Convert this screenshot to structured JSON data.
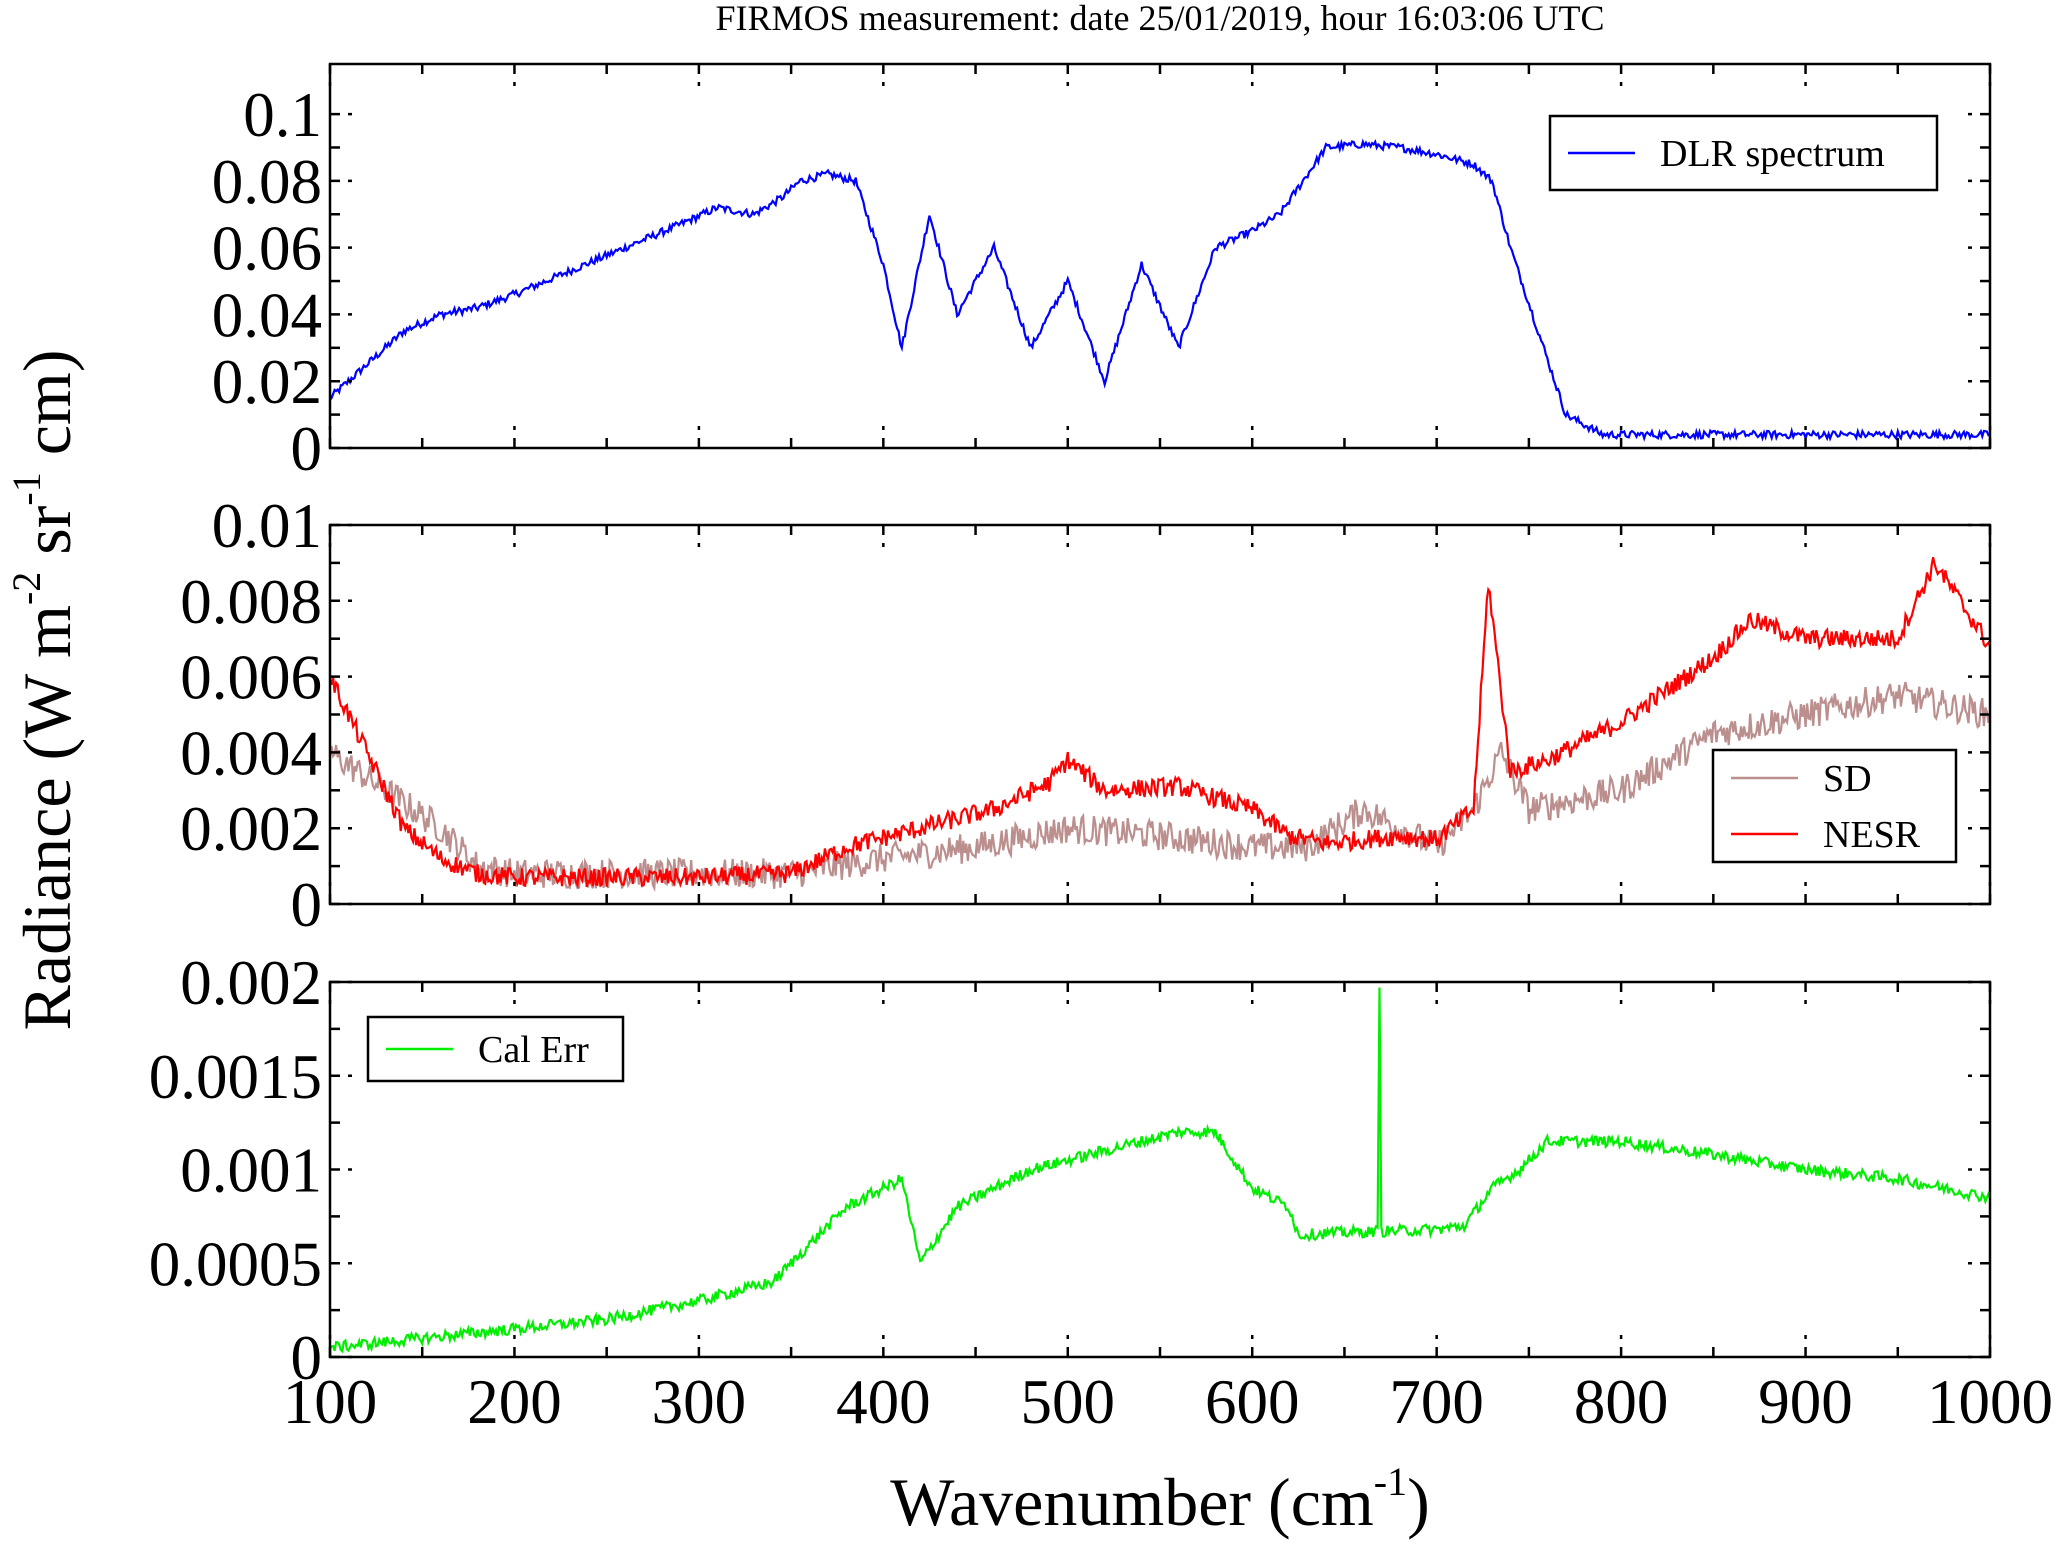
{
  "chart_data": [
    {
      "type": "line",
      "title": "FIRMOS measurement: date 25/01/2019, hour 16:03:06 UTC",
      "xlim": [
        100,
        1000
      ],
      "ylim": [
        0,
        0.115
      ],
      "x_ticks": [
        "100",
        "200",
        "300",
        "400",
        "500",
        "600",
        "700",
        "800",
        "900",
        "1000"
      ],
      "y_ticks": [
        "0",
        "0.02",
        "0.04",
        "0.06",
        "0.08",
        "0.1"
      ],
      "y_tick_values": [
        0,
        0.02,
        0.04,
        0.06,
        0.08,
        0.1
      ],
      "legend_position": "top-right",
      "grid": false,
      "series": [
        {
          "name": "DLR spectrum",
          "color": "#0000ff",
          "x": [
            100,
            120,
            140,
            160,
            180,
            200,
            230,
            260,
            290,
            310,
            330,
            345,
            355,
            370,
            385,
            400,
            410,
            425,
            440,
            460,
            480,
            500,
            520,
            540,
            560,
            580,
            600,
            615,
            625,
            640,
            660,
            680,
            700,
            720,
            730,
            740,
            755,
            770,
            790,
            820,
            860,
            900,
            950,
            1000
          ],
          "y": [
            0.015,
            0.025,
            0.035,
            0.04,
            0.042,
            0.046,
            0.053,
            0.06,
            0.067,
            0.072,
            0.07,
            0.075,
            0.08,
            0.082,
            0.08,
            0.055,
            0.03,
            0.07,
            0.04,
            0.06,
            0.03,
            0.05,
            0.02,
            0.055,
            0.03,
            0.06,
            0.065,
            0.07,
            0.078,
            0.09,
            0.091,
            0.09,
            0.088,
            0.085,
            0.08,
            0.06,
            0.035,
            0.01,
            0.004,
            0.004,
            0.004,
            0.004,
            0.004,
            0.004
          ]
        }
      ]
    },
    {
      "type": "line",
      "xlim": [
        100,
        1000
      ],
      "ylim": [
        0,
        0.01
      ],
      "x_ticks": [
        "100",
        "200",
        "300",
        "400",
        "500",
        "600",
        "700",
        "800",
        "900",
        "1000"
      ],
      "y_ticks": [
        "0",
        "0.002",
        "0.004",
        "0.006",
        "0.008",
        "0.01"
      ],
      "y_tick_values": [
        0,
        0.002,
        0.004,
        0.006,
        0.008,
        0.01
      ],
      "legend_position": "right",
      "grid": false,
      "series": [
        {
          "name": "SD",
          "color": "#bc8f8f",
          "x": [
            100,
            130,
            160,
            180,
            200,
            250,
            300,
            350,
            400,
            450,
            500,
            550,
            600,
            630,
            660,
            700,
            720,
            735,
            750,
            800,
            850,
            900,
            950,
            1000
          ],
          "y": [
            0.004,
            0.003,
            0.002,
            0.001,
            0.0008,
            0.0008,
            0.0008,
            0.0008,
            0.0012,
            0.0015,
            0.002,
            0.0018,
            0.0015,
            0.0015,
            0.0025,
            0.0015,
            0.0025,
            0.004,
            0.0025,
            0.003,
            0.0045,
            0.005,
            0.0055,
            0.005
          ]
        },
        {
          "name": "NESR",
          "color": "#ff0000",
          "x": [
            100,
            120,
            140,
            160,
            180,
            200,
            250,
            300,
            350,
            380,
            420,
            460,
            490,
            500,
            520,
            560,
            600,
            620,
            640,
            680,
            700,
            720,
            728,
            740,
            760,
            800,
            850,
            870,
            900,
            950,
            970,
            1000
          ],
          "y": [
            0.006,
            0.004,
            0.002,
            0.0012,
            0.0008,
            0.0007,
            0.0007,
            0.0007,
            0.0008,
            0.0015,
            0.002,
            0.0025,
            0.0032,
            0.0038,
            0.003,
            0.0031,
            0.0025,
            0.0018,
            0.0016,
            0.0018,
            0.0017,
            0.0025,
            0.0085,
            0.0035,
            0.0038,
            0.0048,
            0.0065,
            0.0075,
            0.007,
            0.007,
            0.009,
            0.0068
          ]
        }
      ]
    },
    {
      "type": "line",
      "xlim": [
        100,
        1000
      ],
      "ylim": [
        0,
        0.002
      ],
      "x_ticks": [
        "100",
        "200",
        "300",
        "400",
        "500",
        "600",
        "700",
        "800",
        "900",
        "1000"
      ],
      "y_ticks": [
        "0",
        "0.0005",
        "0.001",
        "0.0015",
        "0.002"
      ],
      "y_tick_values": [
        0,
        0.0005,
        0.001,
        0.0015,
        0.002
      ],
      "legend_position": "top-left",
      "grid": false,
      "series": [
        {
          "name": "Cal Err",
          "color": "#00ee00",
          "x": [
            100,
            150,
            200,
            250,
            300,
            340,
            360,
            380,
            400,
            410,
            420,
            440,
            480,
            520,
            560,
            580,
            600,
            620,
            625,
            640,
            668,
            669,
            670,
            700,
            715,
            730,
            745,
            760,
            800,
            850,
            900,
            950,
            1000
          ],
          "y": [
            5e-05,
            0.0001,
            0.00015,
            0.0002,
            0.0003,
            0.0004,
            0.0006,
            0.0008,
            0.0009,
            0.00095,
            0.0005,
            0.0008,
            0.001,
            0.0011,
            0.0012,
            0.0012,
            0.0009,
            0.0008,
            0.00065,
            0.00066,
            0.00067,
            0.002,
            0.00067,
            0.00068,
            0.0007,
            0.0009,
            0.001,
            0.00115,
            0.00115,
            0.00108,
            0.001,
            0.00095,
            0.00085
          ]
        }
      ]
    }
  ],
  "labels": {
    "xlabel_main": "Wavenumber (cm",
    "xlabel_sup": "-1",
    "xlabel_close": ")",
    "ylabel_a": "Radiance (W m",
    "ylabel_sup1": "-2",
    "ylabel_b": " sr",
    "ylabel_sup2": "-1",
    "ylabel_c": " cm)"
  }
}
